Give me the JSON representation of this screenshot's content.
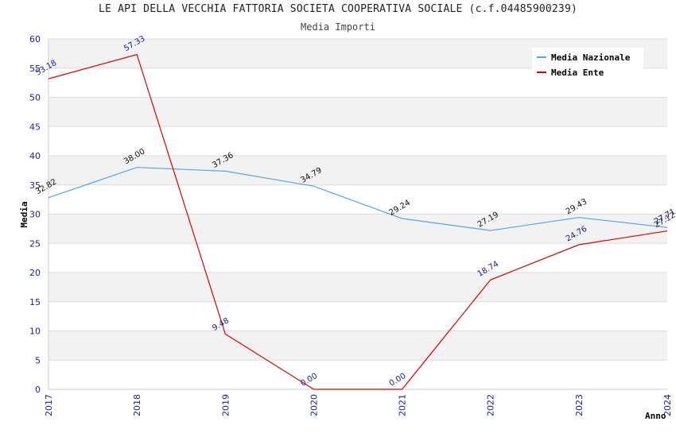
{
  "chart_data": {
    "type": "line",
    "title": "LE API DELLA VECCHIA FATTORIA SOCIETA COOPERATIVA SOCIALE (c.f.04485900239)",
    "subtitle": "Media Importi",
    "xlabel": "Anno",
    "ylabel": "Media",
    "x": [
      "2017",
      "2018",
      "2019",
      "2020",
      "2021",
      "2022",
      "2023",
      "2024"
    ],
    "ylim": [
      0,
      60
    ],
    "yticks": [
      0,
      5,
      10,
      15,
      20,
      25,
      30,
      35,
      40,
      45,
      50,
      55,
      60
    ],
    "grid": true,
    "legend_position": "top-right",
    "series": [
      {
        "name": "Media Nazionale",
        "color": "#5aa0e6",
        "values": [
          32.82,
          38.0,
          37.36,
          34.79,
          29.24,
          27.19,
          29.43,
          27.71
        ],
        "labels": [
          "32.82",
          "38.00",
          "37.36",
          "34.79",
          "29.24",
          "27.19",
          "29.43",
          "27.71"
        ]
      },
      {
        "name": "Media Ente",
        "color": "#e00000",
        "values": [
          53.18,
          57.33,
          9.48,
          0.0,
          0.0,
          18.74,
          24.76,
          27.12
        ],
        "labels": [
          "53.18",
          "57.33",
          "9.48",
          "0.00",
          "0.00",
          "18.74",
          "24.76",
          "27.12"
        ]
      }
    ]
  }
}
